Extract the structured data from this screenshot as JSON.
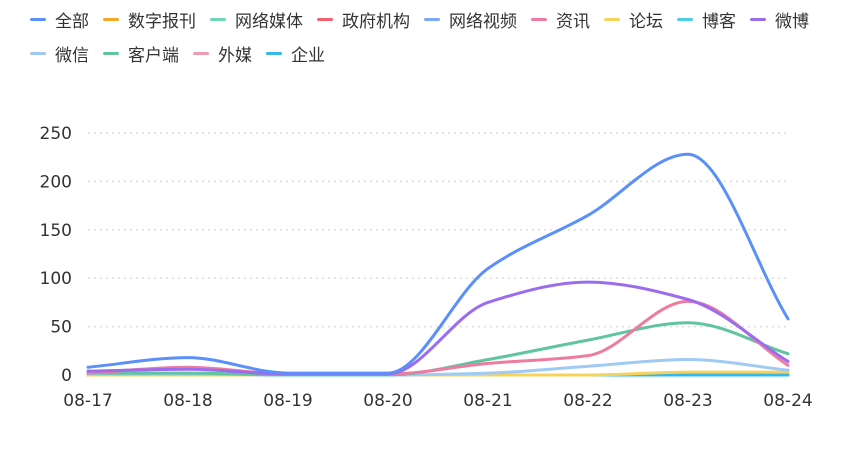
{
  "chart_data": {
    "type": "line",
    "categories": [
      "08-17",
      "08-18",
      "08-19",
      "08-20",
      "08-21",
      "08-22",
      "08-23",
      "08-24"
    ],
    "ylim": [
      0,
      250
    ],
    "yticks": [
      "0",
      "50",
      "100",
      "150",
      "200",
      "250"
    ],
    "grid": true,
    "legend_position": "top-left",
    "series": [
      {
        "name": "全部",
        "color": "#5b8ff9",
        "values": [
          8,
          18,
          2,
          2,
          110,
          165,
          228,
          58
        ]
      },
      {
        "name": "数字报刊",
        "color": "#f6a623",
        "values": [
          0,
          0,
          0,
          0,
          0,
          0,
          0,
          0
        ]
      },
      {
        "name": "网络媒体",
        "color": "#6dd9b0",
        "values": [
          0,
          0,
          0,
          0,
          0,
          0,
          0,
          0
        ]
      },
      {
        "name": "政府机构",
        "color": "#f5616f",
        "values": [
          0,
          0,
          0,
          0,
          0,
          0,
          0,
          0
        ]
      },
      {
        "name": "网络视频",
        "color": "#7ba7f5",
        "values": [
          0,
          0,
          0,
          0,
          0,
          0,
          0,
          0
        ]
      },
      {
        "name": "资讯",
        "color": "#ee7ba0",
        "values": [
          2,
          8,
          1,
          1,
          12,
          20,
          76,
          10
        ]
      },
      {
        "name": "论坛",
        "color": "#f8d35a",
        "values": [
          0,
          0,
          0,
          0,
          0,
          0,
          3,
          3
        ]
      },
      {
        "name": "博客",
        "color": "#4fcde6",
        "values": [
          0,
          0,
          0,
          0,
          0,
          0,
          0,
          0
        ]
      },
      {
        "name": "微博",
        "color": "#9b6ded",
        "values": [
          4,
          6,
          1,
          1,
          75,
          96,
          78,
          14
        ]
      },
      {
        "name": "微信",
        "color": "#9fcaf3",
        "values": [
          1,
          1,
          0,
          0,
          2,
          9,
          16,
          5
        ]
      },
      {
        "name": "客户端",
        "color": "#5fc49f",
        "values": [
          2,
          2,
          0,
          0,
          16,
          36,
          54,
          22
        ]
      },
      {
        "name": "外媒",
        "color": "#f09bb5",
        "values": [
          0,
          0,
          0,
          0,
          0,
          0,
          0,
          0
        ]
      },
      {
        "name": "企业",
        "color": "#34b8ea",
        "values": [
          0,
          0,
          0,
          0,
          0,
          0,
          0,
          0
        ]
      }
    ]
  }
}
